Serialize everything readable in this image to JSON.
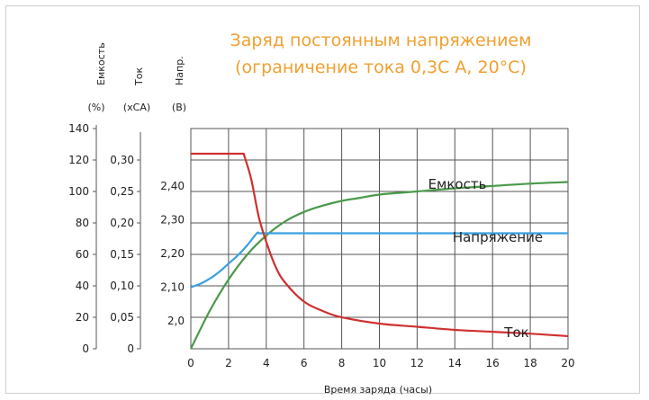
{
  "chart_data": {
    "type": "line",
    "title_line1": "Заряд постоянным напряжением",
    "title_line2": "(ограничение тока 0,3С А, 20°С)",
    "xlabel": "Время заряда (часы)",
    "x_ticks": [
      "0",
      "2",
      "4",
      "6",
      "8",
      "10",
      "12",
      "14",
      "16",
      "18",
      "20"
    ],
    "xlim": [
      0,
      20
    ],
    "axes": [
      {
        "id": "capacity",
        "title": "Емкость",
        "unit": "(%)",
        "ticks": [
          "0",
          "20",
          "40",
          "60",
          "80",
          "100",
          "120",
          "140"
        ],
        "ylim": [
          0,
          140
        ]
      },
      {
        "id": "current",
        "title": "Ток",
        "unit": "(хСА)",
        "ticks": [
          "0",
          "0,05",
          "0,10",
          "0,15",
          "0,20",
          "0,25",
          "0,30"
        ],
        "ylim": [
          0,
          0.35
        ]
      },
      {
        "id": "voltage",
        "title": "Напр.",
        "unit": "(В)",
        "ticks": [
          "2,0",
          "2,10",
          "2,20",
          "2,30",
          "2,40"
        ],
        "tick_values": [
          2.0,
          2.1,
          2.2,
          2.3,
          2.4
        ]
      }
    ],
    "grid": true,
    "colors": {
      "capacity": "#4a9a4a",
      "voltage": "#3aa0e0",
      "current": "#d03030",
      "title": "#f0a030"
    },
    "series": [
      {
        "name": "Емкость",
        "axis": "capacity",
        "x": [
          0,
          1,
          2,
          3,
          4,
          5,
          6,
          7,
          8,
          9,
          10,
          12,
          14,
          16,
          18,
          20
        ],
        "y": [
          0,
          24,
          44,
          60,
          72,
          81,
          87,
          91,
          94,
          96,
          98,
          100,
          102,
          103.5,
          105,
          106
        ]
      },
      {
        "name": "Напряжение",
        "axis": "voltage",
        "x": [
          0,
          0.5,
          1,
          1.5,
          2,
          2.5,
          3,
          3.5,
          3.6,
          4,
          6,
          8,
          10,
          12,
          14,
          16,
          18,
          20
        ],
        "y": [
          2.1,
          2.11,
          2.125,
          2.145,
          2.17,
          2.195,
          2.225,
          2.26,
          2.26,
          2.26,
          2.26,
          2.26,
          2.26,
          2.26,
          2.26,
          2.26,
          2.26,
          2.26
        ]
      },
      {
        "name": "Ток",
        "axis": "current",
        "x": [
          0,
          1,
          2,
          2.8,
          3.2,
          3.6,
          4,
          4.5,
          5,
          6,
          7,
          8,
          10,
          12,
          14,
          16,
          18,
          20
        ],
        "y": [
          0.31,
          0.31,
          0.31,
          0.31,
          0.27,
          0.21,
          0.17,
          0.13,
          0.105,
          0.075,
          0.06,
          0.05,
          0.04,
          0.035,
          0.03,
          0.027,
          0.024,
          0.02
        ]
      }
    ]
  }
}
